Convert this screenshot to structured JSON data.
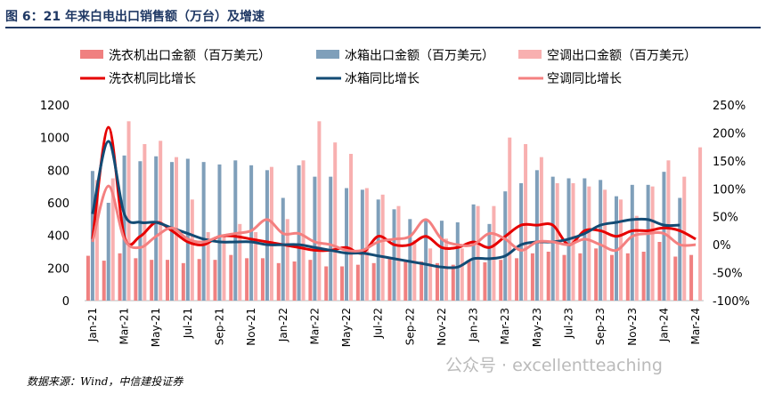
{
  "title": "图 6：21 年来白电出口销售额（万台）及增速",
  "source": "数据来源：Wind，中信建投证券",
  "watermark": "公众号 · excellentteaching",
  "chart_data": {
    "type": "bar+line",
    "title": "21 年来白电出口销售额（万台）及增速",
    "ylim": [
      0,
      1200
    ],
    "yticks": [
      0,
      200,
      400,
      600,
      800,
      1000,
      1200
    ],
    "y2lim": [
      -100,
      250
    ],
    "y2ticks": [
      "-100%",
      "-50%",
      "0%",
      "50%",
      "100%",
      "150%",
      "200%",
      "250%"
    ],
    "x": [
      "Jan-21",
      "Feb-21",
      "Mar-21",
      "Apr-21",
      "May-21",
      "Jun-21",
      "Jul-21",
      "Aug-21",
      "Sep-21",
      "Oct-21",
      "Nov-21",
      "Dec-21",
      "Jan-22",
      "Feb-22",
      "Mar-22",
      "Apr-22",
      "May-22",
      "Jun-22",
      "Jul-22",
      "Aug-22",
      "Sep-22",
      "Oct-22",
      "Nov-22",
      "Dec-22",
      "Jan-23",
      "Feb-23",
      "Mar-23",
      "Apr-23",
      "May-23",
      "Jun-23",
      "Jul-23",
      "Aug-23",
      "Sep-23",
      "Oct-23",
      "Nov-23",
      "Dec-23",
      "Jan-24",
      "Feb-24",
      "Mar-24"
    ],
    "xtick_labels": [
      "Jan-21",
      "Mar-21",
      "May-21",
      "Jul-21",
      "Sep-21",
      "Nov-21",
      "Jan-22",
      "Mar-22",
      "May-22",
      "Jul-22",
      "Sep-22",
      "Nov-22",
      "Jan-23",
      "Mar-23",
      "May-23",
      "Jul-23",
      "Sep-23",
      "Nov-23",
      "Jan-24",
      "Mar-24"
    ],
    "bars": [
      {
        "name": "洗衣机出口金额（百万美元）",
        "color": "#f08080",
        "values": [
          275,
          245,
          290,
          260,
          250,
          250,
          230,
          255,
          250,
          280,
          260,
          260,
          230,
          240,
          250,
          210,
          210,
          220,
          230,
          260,
          250,
          240,
          230,
          220,
          240,
          235,
          250,
          260,
          290,
          300,
          280,
          290,
          320,
          280,
          290,
          300,
          360,
          270,
          280
        ]
      },
      {
        "name": "冰箱出口金额（百万美元）",
        "color": "#7f9fba",
        "values": [
          795,
          600,
          890,
          855,
          885,
          850,
          870,
          850,
          835,
          860,
          830,
          800,
          630,
          830,
          760,
          760,
          690,
          680,
          620,
          560,
          500,
          500,
          490,
          480,
          590,
          470,
          670,
          720,
          800,
          760,
          750,
          750,
          740,
          640,
          710,
          710,
          790,
          630,
          null
        ]
      },
      {
        "name": "空调出口金额（百万美元）",
        "color": "#f8b0b0",
        "values": [
          740,
          750,
          1100,
          960,
          980,
          880,
          620,
          420,
          400,
          470,
          420,
          820,
          500,
          860,
          1100,
          970,
          900,
          690,
          650,
          580,
          370,
          320,
          380,
          320,
          580,
          580,
          1000,
          960,
          880,
          720,
          720,
          700,
          680,
          620,
          520,
          700,
          860,
          760,
          940
        ]
      }
    ],
    "lines": [
      {
        "name": "洗衣机同比增长",
        "color": "#e60000",
        "values": [
          10,
          210,
          15,
          15,
          40,
          25,
          5,
          0,
          15,
          15,
          10,
          5,
          0,
          -5,
          -10,
          -10,
          -5,
          -15,
          15,
          0,
          0,
          15,
          -5,
          -5,
          5,
          -5,
          15,
          35,
          35,
          35,
          0,
          25,
          25,
          15,
          25,
          25,
          30,
          25,
          10
        ]
      },
      {
        "name": "冰箱同比增长",
        "color": "#134b74",
        "values": [
          55,
          185,
          55,
          40,
          40,
          30,
          20,
          10,
          5,
          5,
          5,
          0,
          0,
          0,
          -5,
          -10,
          -15,
          -15,
          -20,
          -25,
          -30,
          -35,
          -40,
          -40,
          -25,
          -25,
          -20,
          0,
          5,
          5,
          10,
          20,
          35,
          40,
          45,
          45,
          35,
          35,
          null
        ]
      },
      {
        "name": "空调同比增长",
        "color": "#f48080",
        "values": [
          5,
          105,
          10,
          -5,
          15,
          30,
          10,
          5,
          15,
          20,
          25,
          45,
          20,
          20,
          5,
          0,
          -10,
          -10,
          5,
          10,
          15,
          45,
          10,
          0,
          0,
          20,
          10,
          -10,
          5,
          5,
          0,
          10,
          0,
          -10,
          15,
          20,
          20,
          0,
          0
        ]
      }
    ]
  }
}
